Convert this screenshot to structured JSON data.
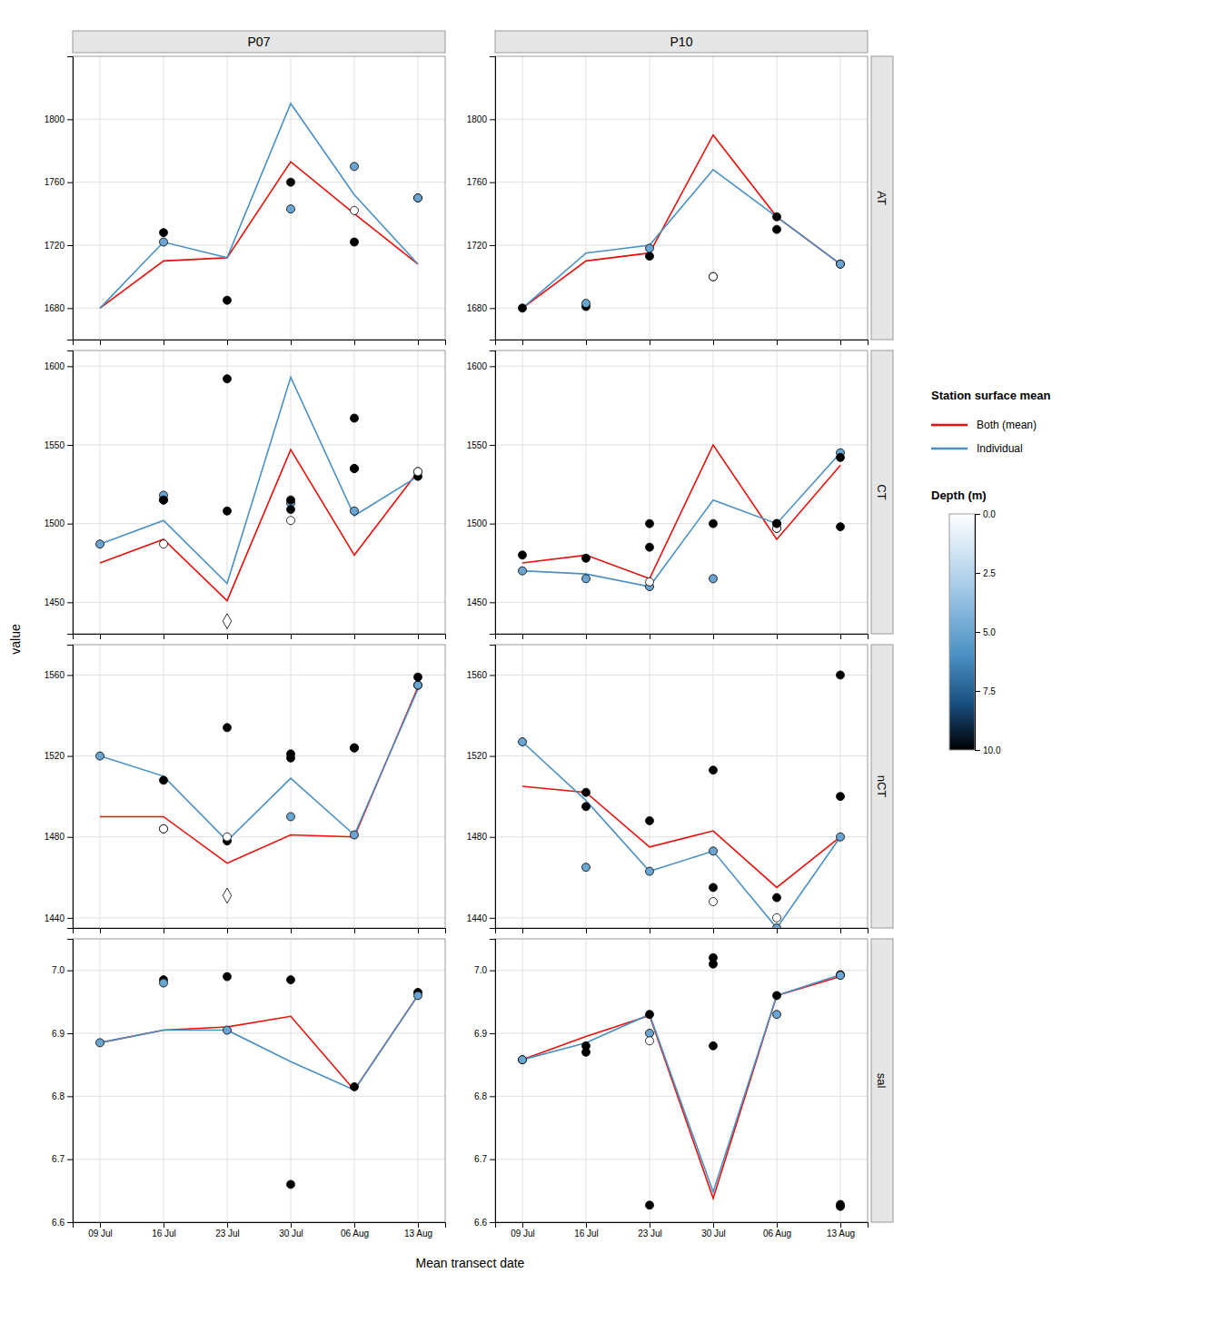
{
  "chart_data": {
    "type": "line",
    "xlabel": "Mean transect date",
    "ylabel": "value",
    "columns": [
      "P07",
      "P10"
    ],
    "rows": [
      "AT",
      "CT",
      "nCT",
      "sal"
    ],
    "x": [
      0,
      7,
      14,
      21,
      28,
      35
    ],
    "xlim": [
      -3,
      38
    ],
    "xticks": [
      {
        "value": 0,
        "label": "09 Jul"
      },
      {
        "value": 7,
        "label": "16 Jul"
      },
      {
        "value": 14,
        "label": "23 Jul"
      },
      {
        "value": 21,
        "label": "30 Jul"
      },
      {
        "value": 28,
        "label": "06 Aug"
      },
      {
        "value": 35,
        "label": "13 Aug"
      }
    ],
    "grid": true,
    "legend": "right",
    "legend_title": "Station surface mean",
    "colorbar": {
      "title": "Depth (m)",
      "range": [
        0,
        10
      ],
      "ticks": [
        {
          "value": 0,
          "label": "0.0"
        },
        {
          "value": 2.5,
          "label": "2.5"
        },
        {
          "value": 5,
          "label": "5.0"
        },
        {
          "value": 7.5,
          "label": "7.5"
        },
        {
          "value": 10,
          "label": "10.0"
        }
      ],
      "colors": [
        "#FFFFFF",
        "#AACCE8",
        "#4A90C4",
        "#1A5080",
        "#000000"
      ]
    },
    "panels": [
      {
        "ylim": [
          1660,
          1840
        ],
        "yticks": [
          1680,
          1720,
          1760,
          1800
        ],
        "series": [
          {
            "name": "Both (mean)",
            "type": "line",
            "color": "#E8100A",
            "values": [
              1680,
              1710,
              1712,
              1773,
              1740,
              1708
            ]
          },
          {
            "name": "Individual",
            "type": "line",
            "color": "#4A90C4",
            "values": [
              1680,
              1722,
              1712,
              1810,
              1752,
              1708
            ]
          },
          {
            "type": "scatter",
            "marker": "circle",
            "x": [
              7,
              7,
              14,
              21,
              21,
              28,
              28,
              35,
              35
            ],
            "values": [
              1728,
              1722,
              1685,
              1760,
              1743,
              1770,
              1722,
              1750,
              1750
            ],
            "depth": [
              10,
              5,
              10,
              10,
              5,
              5,
              10,
              0,
              5
            ]
          },
          {
            "type": "scatter",
            "marker": "circle",
            "color": "#FFFFFF",
            "x": [
              28
            ],
            "values": [
              1742
            ]
          }
        ]
      },
      {
        "ylim": [
          1660,
          1840
        ],
        "yticks": [
          1680,
          1720,
          1760,
          1800
        ],
        "series": [
          {
            "name": "Both (mean)",
            "type": "line",
            "color": "#E8100A",
            "values": [
              1680,
              1710,
              1715,
              1790,
              1738,
              1708
            ]
          },
          {
            "name": "Individual",
            "type": "line",
            "color": "#4A90C4",
            "values": [
              1680,
              1715,
              1720,
              1768,
              1738,
              1708
            ]
          },
          {
            "type": "scatter",
            "marker": "circle",
            "x": [
              0,
              7,
              7,
              14,
              14,
              21,
              28,
              28,
              35,
              35
            ],
            "values": [
              1680,
              1681,
              1683,
              1713,
              1718,
              1700,
              1738,
              1730,
              1708,
              1708
            ],
            "depth": [
              10,
              10,
              5,
              10,
              5,
              10,
              10,
              10,
              10,
              5
            ]
          },
          {
            "type": "scatter",
            "marker": "circle",
            "color": "#FFFFFF",
            "x": [
              21
            ],
            "values": [
              1700
            ]
          }
        ]
      },
      {
        "ylim": [
          1430,
          1610
        ],
        "yticks": [
          1450,
          1500,
          1550,
          1600
        ],
        "series": [
          {
            "name": "Both (mean)",
            "type": "line",
            "color": "#E8100A",
            "values": [
              1475,
              1490,
              1451,
              1547,
              1480,
              1533
            ]
          },
          {
            "name": "Individual",
            "type": "line",
            "color": "#4A90C4",
            "values": [
              1487,
              1502,
              1462,
              1593,
              1505,
              1530
            ]
          },
          {
            "type": "scatter",
            "marker": "circle",
            "x": [
              0,
              7,
              7,
              14,
              21,
              21,
              28,
              28,
              35,
              35
            ],
            "values": [
              1487,
              1515,
              1518,
              1508,
              1513,
              1515,
              1508,
              1535,
              1533,
              1530
            ],
            "depth": [
              5,
              10,
              5,
              10,
              5,
              10,
              5,
              10,
              5,
              10
            ]
          },
          {
            "type": "scatter",
            "marker": "circle",
            "color": "#FFFFFF",
            "x": [
              7,
              21,
              35
            ],
            "values": [
              1487,
              1502,
              1533
            ]
          },
          {
            "type": "scatter",
            "marker": "circle",
            "color": "#000000",
            "x": [
              7,
              14,
              21,
              28,
              28
            ],
            "values": [
              1515,
              1592,
              1509,
              1567,
              1535
            ]
          },
          {
            "type": "scatter",
            "marker": "diamond",
            "color": "#FFFFFF",
            "x": [
              14
            ],
            "values": [
              1438
            ]
          }
        ]
      },
      {
        "ylim": [
          1430,
          1610
        ],
        "yticks": [
          1450,
          1500,
          1550,
          1600
        ],
        "series": [
          {
            "name": "Both (mean)",
            "type": "line",
            "color": "#E8100A",
            "values": [
              1475,
              1480,
              1465,
              1550,
              1490,
              1537
            ]
          },
          {
            "name": "Individual",
            "type": "line",
            "color": "#4A90C4",
            "values": [
              1470,
              1468,
              1460,
              1515,
              1500,
              1545
            ]
          },
          {
            "type": "scatter",
            "marker": "circle",
            "x": [
              0,
              7,
              14,
              14,
              21,
              21,
              28,
              28,
              35,
              35
            ],
            "values": [
              1470,
              1465,
              1460,
              1500,
              1465,
              1500,
              1497,
              1500,
              1545,
              1542
            ],
            "depth": [
              5,
              5,
              5,
              10,
              5,
              10,
              5,
              10,
              5,
              10
            ]
          },
          {
            "type": "scatter",
            "marker": "circle",
            "color": "#FFFFFF",
            "x": [
              14,
              28
            ],
            "values": [
              1463,
              1497
            ]
          },
          {
            "type": "scatter",
            "marker": "circle",
            "color": "#000000",
            "x": [
              0,
              7,
              14,
              28,
              35
            ],
            "values": [
              1480,
              1478,
              1485,
              1500,
              1498
            ]
          }
        ]
      },
      {
        "ylim": [
          1435,
          1575
        ],
        "yticks": [
          1440,
          1480,
          1520,
          1560
        ],
        "series": [
          {
            "name": "Both (mean)",
            "type": "line",
            "color": "#E8100A",
            "values": [
              1490,
              1490,
              1467,
              1481,
              1480,
              1554
            ]
          },
          {
            "name": "Individual",
            "type": "line",
            "color": "#4A90C4",
            "values": [
              1520,
              1510,
              1478,
              1509,
              1481,
              1553
            ]
          },
          {
            "type": "scatter",
            "marker": "circle",
            "x": [
              0,
              7,
              7,
              14,
              21,
              21,
              28,
              28,
              35,
              35
            ],
            "values": [
              1520,
              1508,
              1484,
              1478,
              1490,
              1519,
              1481,
              1524,
              1555,
              1555
            ],
            "depth": [
              5,
              10,
              5,
              10,
              5,
              10,
              5,
              10,
              10,
              5
            ]
          },
          {
            "type": "scatter",
            "marker": "circle",
            "color": "#FFFFFF",
            "x": [
              7,
              14
            ],
            "values": [
              1484,
              1480
            ]
          },
          {
            "type": "scatter",
            "marker": "circle",
            "color": "#000000",
            "x": [
              14,
              21,
              28,
              35
            ],
            "values": [
              1534,
              1521,
              1524,
              1559
            ]
          },
          {
            "type": "scatter",
            "marker": "diamond",
            "color": "#FFFFFF",
            "x": [
              14
            ],
            "values": [
              1451
            ]
          }
        ]
      },
      {
        "ylim": [
          1435,
          1575
        ],
        "yticks": [
          1440,
          1480,
          1520,
          1560
        ],
        "series": [
          {
            "name": "Both (mean)",
            "type": "line",
            "color": "#E8100A",
            "values": [
              1505,
              1502,
              1475,
              1483,
              1455,
              1480
            ]
          },
          {
            "name": "Individual",
            "type": "line",
            "color": "#4A90C4",
            "values": [
              1527,
              1498,
              1463,
              1473,
              1435,
              1480
            ]
          },
          {
            "type": "scatter",
            "marker": "circle",
            "x": [
              0,
              7,
              7,
              14,
              21,
              21,
              28,
              28,
              35,
              35
            ],
            "values": [
              1527,
              1495,
              1465,
              1463,
              1473,
              1455,
              1435,
              1450,
              1480,
              1560
            ],
            "depth": [
              5,
              10,
              5,
              5,
              5,
              10,
              5,
              10,
              5,
              10
            ]
          },
          {
            "type": "scatter",
            "marker": "circle",
            "color": "#FFFFFF",
            "x": [
              21,
              28
            ],
            "values": [
              1448,
              1440
            ]
          },
          {
            "type": "scatter",
            "marker": "circle",
            "color": "#000000",
            "x": [
              7,
              14,
              21,
              35
            ],
            "values": [
              1502,
              1488,
              1513,
              1500
            ]
          }
        ]
      },
      {
        "ylim": [
          6.6,
          7.05
        ],
        "yticks": [
          6.6,
          6.7,
          6.8,
          6.9,
          {
            "value": 7.0,
            "label": "7.0"
          }
        ],
        "series": [
          {
            "name": "Both (mean)",
            "type": "line",
            "color": "#E8100A",
            "values": [
              6.885,
              6.905,
              6.91,
              6.927,
              6.81,
              6.96
            ]
          },
          {
            "name": "Individual",
            "type": "line",
            "color": "#4A90C4",
            "values": [
              6.885,
              6.905,
              6.905,
              6.855,
              6.81,
              6.96
            ]
          },
          {
            "type": "scatter",
            "marker": "circle",
            "x": [
              0,
              7,
              7,
              14,
              14,
              21,
              28,
              35,
              35
            ],
            "values": [
              6.885,
              6.985,
              6.98,
              6.99,
              6.905,
              6.985,
              6.815,
              6.965,
              6.96
            ],
            "depth": [
              5,
              10,
              5,
              10,
              5,
              10,
              10,
              10,
              5
            ]
          },
          {
            "type": "scatter",
            "marker": "circle",
            "color": "#000000",
            "x": [
              21
            ],
            "values": [
              6.66
            ]
          }
        ]
      },
      {
        "ylim": [
          6.6,
          7.05
        ],
        "yticks": [
          6.6,
          6.7,
          6.8,
          6.9,
          {
            "value": 7.0,
            "label": "7.0"
          }
        ],
        "series": [
          {
            "name": "Both (mean)",
            "type": "line",
            "color": "#E8100A",
            "values": [
              6.858,
              6.895,
              6.928,
              6.638,
              6.96,
              6.99
            ]
          },
          {
            "name": "Individual",
            "type": "line",
            "color": "#4A90C4",
            "values": [
              6.858,
              6.885,
              6.93,
              6.648,
              6.96,
              6.993
            ]
          },
          {
            "type": "scatter",
            "marker": "circle",
            "x": [
              0,
              0,
              7,
              14,
              14,
              21,
              28,
              28,
              35,
              35
            ],
            "values": [
              6.858,
              6.858,
              6.87,
              6.93,
              6.9,
              6.88,
              6.96,
              6.93,
              6.993,
              6.992
            ],
            "depth": [
              10,
              5,
              10,
              10,
              5,
              10,
              10,
              5,
              10,
              5
            ]
          },
          {
            "type": "scatter",
            "marker": "circle",
            "color": "#FFFFFF",
            "x": [
              14
            ],
            "values": [
              6.888
            ]
          },
          {
            "type": "scatter",
            "marker": "circle",
            "color": "#000000",
            "x": [
              7,
              14,
              21,
              21,
              35,
              35
            ],
            "values": [
              6.88,
              6.627,
              7.01,
              7.02,
              6.628,
              6.625
            ]
          }
        ]
      }
    ]
  }
}
